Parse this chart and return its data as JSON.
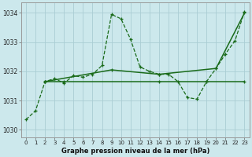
{
  "xlabel": "Graphe pression niveau de la mer (hPa)",
  "background_color": "#cce8ec",
  "grid_color": "#aacdd4",
  "line_color": "#1a6b1a",
  "ylim": [
    1029.75,
    1034.35
  ],
  "xlim": [
    -0.5,
    23.5
  ],
  "yticks": [
    1030,
    1031,
    1032,
    1033,
    1034
  ],
  "xticks": [
    0,
    1,
    2,
    3,
    4,
    5,
    6,
    7,
    8,
    9,
    10,
    11,
    12,
    13,
    14,
    15,
    16,
    17,
    18,
    19,
    20,
    21,
    22,
    23
  ],
  "series1_x": [
    0,
    1,
    2,
    3,
    4,
    5,
    6,
    7,
    8,
    9,
    10,
    11,
    12,
    13,
    14,
    15,
    16,
    17,
    18,
    19,
    20,
    21,
    22,
    23
  ],
  "series1_y": [
    1030.35,
    1030.65,
    1031.65,
    1031.75,
    1031.6,
    1031.85,
    1031.8,
    1031.9,
    1032.2,
    1033.95,
    1033.8,
    1033.1,
    1032.15,
    1032.0,
    1031.9,
    1031.9,
    1031.65,
    1031.1,
    1031.05,
    1031.65,
    1032.1,
    1032.6,
    1033.05,
    1034.05
  ],
  "series2_x": [
    2,
    4,
    14,
    19,
    23
  ],
  "series2_y": [
    1031.65,
    1031.65,
    1031.65,
    1031.65,
    1031.65
  ],
  "series3_x": [
    2,
    9,
    14,
    20,
    23
  ],
  "series3_y": [
    1031.65,
    1032.05,
    1031.9,
    1032.1,
    1034.0
  ]
}
